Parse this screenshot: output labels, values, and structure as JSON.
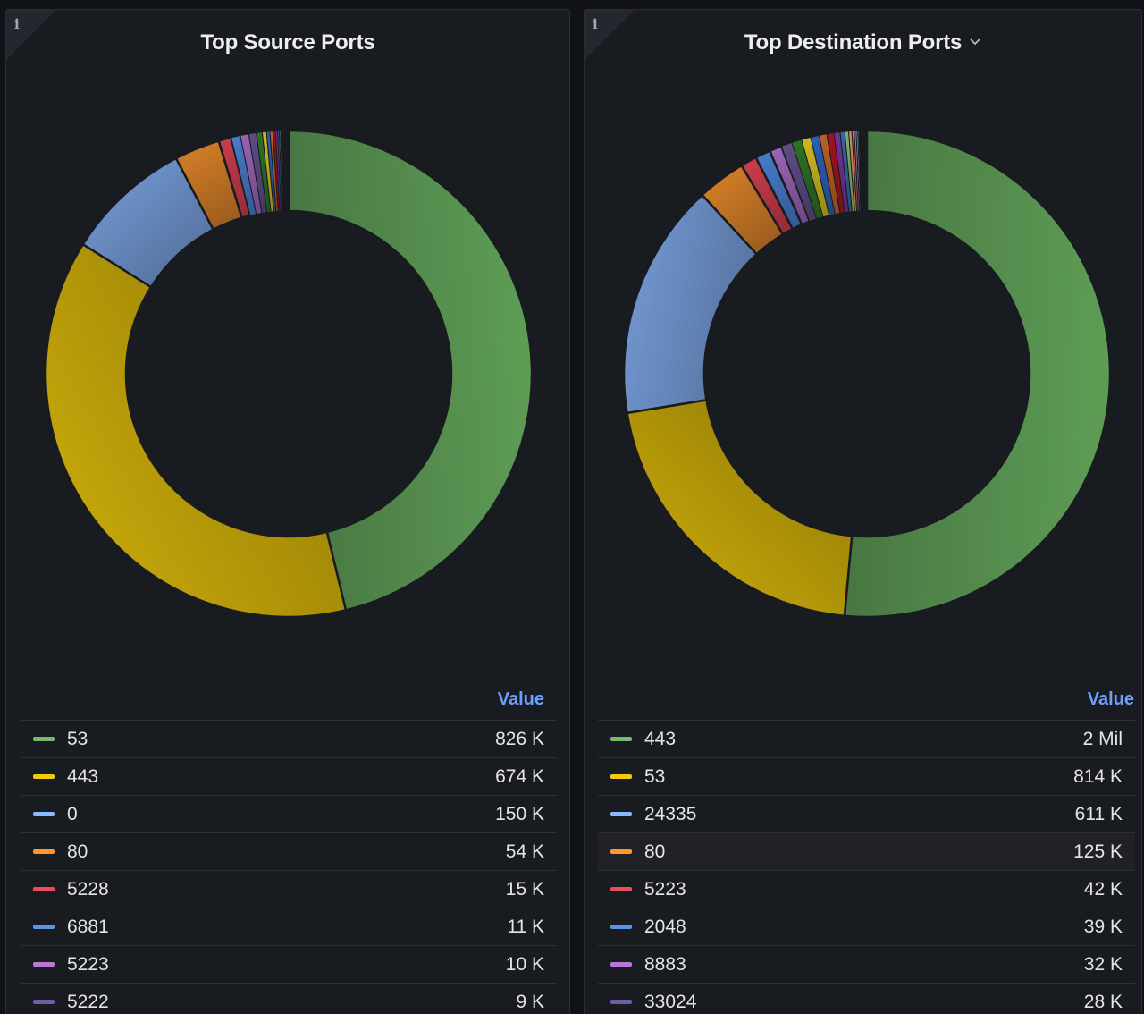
{
  "value_header": "Value",
  "chart_data": [
    {
      "type": "pie",
      "donut": true,
      "title": "Top Source Ports",
      "categories": [
        "53",
        "443",
        "0",
        "80",
        "5228",
        "6881",
        "5223",
        "5222"
      ],
      "values": [
        826000,
        674000,
        150000,
        54000,
        15000,
        11000,
        10000,
        9000
      ],
      "value_labels": [
        "826 K",
        "674 K",
        "150 K",
        "54 K",
        "15 K",
        "11 K",
        "10 K",
        "9 K"
      ],
      "colors": [
        "#73bf69",
        "#f2cc0c",
        "#8ab8ff",
        "#ff9830",
        "#f2495c",
        "#5794f2",
        "#b877d9",
        "#705da0"
      ],
      "extra_slices": {
        "values": [
          7000,
          5000,
          4000,
          3500,
          3000,
          2500,
          2000,
          1500,
          1000
        ],
        "colors": [
          "#37872d",
          "#fade2a",
          "#3274d9",
          "#e0752d",
          "#c4162a",
          "#8f3bb8",
          "#447ebc",
          "#96d98d",
          "#ffb357"
        ]
      },
      "legend_placement": "bottom"
    },
    {
      "type": "pie",
      "donut": true,
      "title": "Top Destination Ports",
      "categories": [
        "443",
        "53",
        "24335",
        "80",
        "5223",
        "2048",
        "8883",
        "33024"
      ],
      "values": [
        2000000,
        814000,
        611000,
        125000,
        42000,
        39000,
        32000,
        28000
      ],
      "value_labels": [
        "2 Mil",
        "814 K",
        "611 K",
        "125 K",
        "42 K",
        "39 K",
        "32 K",
        "28 K"
      ],
      "colors": [
        "#73bf69",
        "#f2cc0c",
        "#8ab8ff",
        "#ff9830",
        "#f2495c",
        "#5794f2",
        "#b877d9",
        "#705da0"
      ],
      "extra_slices": {
        "values": [
          26000,
          24000,
          22000,
          20000,
          18000,
          16000,
          12000,
          10000,
          8000,
          6000,
          5000,
          4000,
          3000,
          2000
        ],
        "colors": [
          "#37872d",
          "#fade2a",
          "#3274d9",
          "#e0752d",
          "#c4162a",
          "#8f3bb8",
          "#447ebc",
          "#96d98d",
          "#ffb357",
          "#ff7383",
          "#ca95e5",
          "#badff4",
          "#f9d9f9",
          "#cffaff"
        ]
      },
      "legend_placement": "bottom"
    }
  ]
}
